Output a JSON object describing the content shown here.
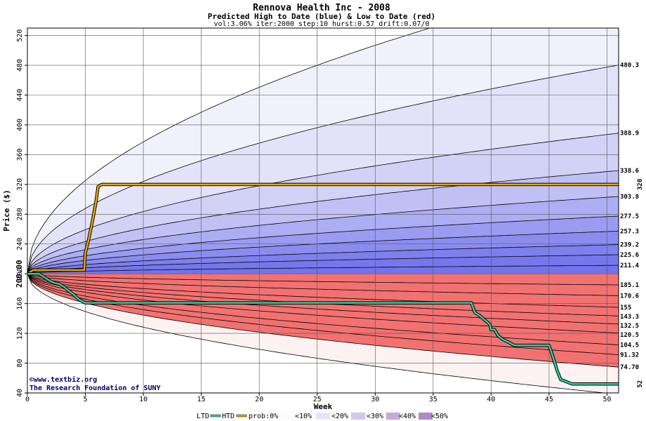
{
  "chart_data": {
    "type": "area",
    "title": "Rennova Health Inc - 2008",
    "subtitle": "Predicted High to Date (blue) &  Low to Date (red)",
    "params": "vol:3.06% iter:2000 step:10 hurst:0.57 drift:0.07/0",
    "xlabel": "Week",
    "ylabel": "Price ($)",
    "xlim": [
      0,
      51
    ],
    "ylim": [
      40,
      530
    ],
    "x_ticks": [
      0,
      5,
      10,
      15,
      20,
      25,
      30,
      35,
      40,
      45,
      50
    ],
    "y_ticks": [
      40,
      80,
      120,
      160,
      200,
      240,
      280,
      320,
      360,
      400,
      440,
      480,
      520
    ],
    "grid": true,
    "start_price": 200,
    "start_price_label": "200.00",
    "high_marker_label": "320",
    "high_marker_value": 320,
    "low_marker_label": "52",
    "low_marker_value": 52,
    "high_band_levels": [
      480.3,
      388.9,
      338.6,
      303.8,
      277.5,
      257.3,
      239.2,
      225.6,
      211.4
    ],
    "high_band_labels": [
      "480.3",
      "388.9",
      "338.6",
      "303.8",
      "277.5",
      "257.3",
      "239.2",
      "225.6",
      "211.4"
    ],
    "high_band_outer": 600,
    "low_band_levels": [
      185.1,
      170.6,
      155,
      143.3,
      132.5,
      120.5,
      104.5,
      91.32,
      74.7
    ],
    "low_band_labels": [
      "185.1",
      "170.6",
      "155",
      "143.3",
      "132.5",
      "120.5",
      "104.5",
      "91.32",
      "74.70"
    ],
    "low_band_outer": 38,
    "band_colors_high": [
      "#f1f1fb",
      "#e2e2f9",
      "#d2d2f7",
      "#c0c0f5",
      "#adadf3",
      "#9b9bf1",
      "#8c8cef",
      "#7f7fee",
      "#7777ed",
      "#7373ec"
    ],
    "band_colors_low": [
      "#fdf2f2",
      "#fde2e2",
      "#fcd2d2",
      "#fbc0c0",
      "#f9aeae",
      "#f79c9c",
      "#f58c8c",
      "#f48080",
      "#f37878",
      "#f27272"
    ],
    "series": [
      {
        "name": "HTD",
        "color": "#e8a800",
        "x": [
          0,
          0.5,
          1,
          2,
          3,
          4,
          4.9,
          5.0,
          5.3,
          5.6,
          5.9,
          6.1,
          6.4,
          7,
          51
        ],
        "y": [
          200,
          205,
          205,
          205,
          205,
          205,
          205,
          228,
          247,
          270,
          295,
          317,
          320,
          320,
          320
        ]
      },
      {
        "name": "LTD",
        "color": "#30d0a0",
        "x": [
          0,
          1,
          1.5,
          2,
          2.3,
          2.8,
          3.2,
          3.5,
          4,
          4.5,
          5,
          10,
          20,
          30,
          38.3,
          38.6,
          39,
          39.3,
          39.6,
          39.9,
          40,
          40.3,
          40.6,
          41,
          41.5,
          42,
          44,
          45,
          45.2,
          45.5,
          45.7,
          46,
          47,
          51
        ],
        "y": [
          200,
          200,
          195,
          190,
          188,
          186,
          182,
          178,
          172,
          165,
          161,
          161,
          161,
          161,
          161,
          148,
          144,
          140,
          136,
          132,
          125,
          125,
          117,
          112,
          108,
          104,
          104,
          104,
          95,
          80,
          70,
          58,
          52,
          52
        ]
      }
    ],
    "legend": {
      "ltd": "LTD",
      "htd": "HTD",
      "prob0": "prob:0%",
      "p10": "<10%",
      "p20": "<20%",
      "p30": "<30%",
      "p40": "<40%",
      "p50": "<50%"
    },
    "credits": {
      "line1": "©www.textbiz.org",
      "line2": "The Research Foundation of SUNY"
    }
  }
}
